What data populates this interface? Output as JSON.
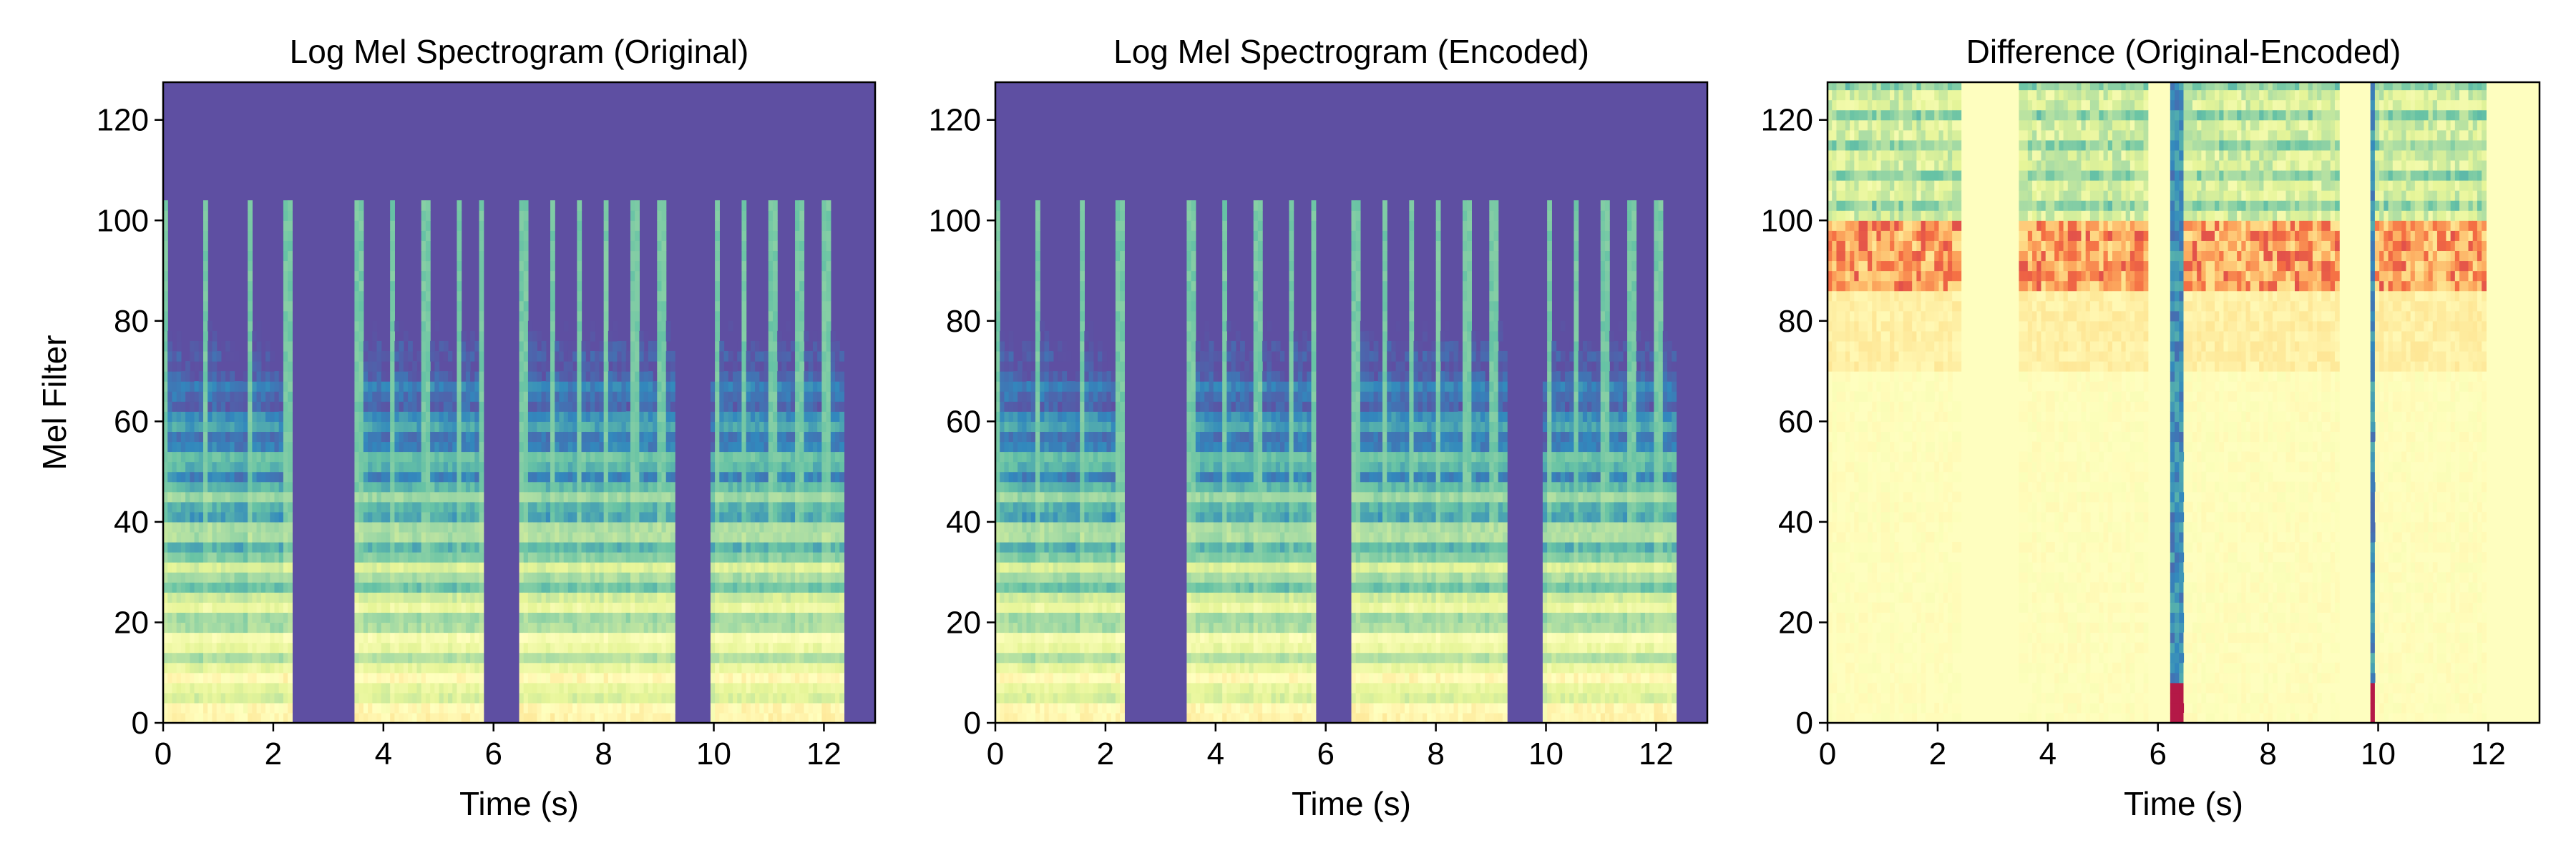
{
  "chart_data": [
    {
      "type": "heatmap",
      "title": "Log Mel Spectrogram (Original)",
      "xlabel": "Time (s)",
      "ylabel": "Mel Filter",
      "xlim": [
        0,
        12.93
      ],
      "ylim": [
        0,
        127.5
      ],
      "xticks": [
        "0",
        "2",
        "4",
        "6",
        "8",
        "10",
        "12"
      ],
      "yticks": [
        "0",
        "20",
        "40",
        "60",
        "80",
        "100",
        "120"
      ],
      "colormap": "Spectral_r",
      "background_color": "#5e4fa2",
      "grid": false,
      "legend": false,
      "kind": "spectrogram",
      "note_onsets_s": [
        0.0,
        0.7,
        1.5,
        2.2,
        3.5,
        4.1,
        4.7,
        5.3,
        5.7,
        6.5,
        7.0,
        7.5,
        8.0,
        8.5,
        9.0,
        10.0,
        10.5,
        11.0,
        11.5,
        12.0
      ],
      "silent_intervals_s": [
        [
          2.35,
          3.45
        ],
        [
          5.85,
          6.45
        ],
        [
          9.3,
          9.95
        ],
        [
          12.4,
          12.93
        ]
      ],
      "max_active_mel_bin": 100
    },
    {
      "type": "heatmap",
      "title": "Log Mel Spectrogram (Encoded)",
      "xlabel": "Time (s)",
      "ylabel": "",
      "xlim": [
        0,
        12.93
      ],
      "ylim": [
        0,
        127.5
      ],
      "xticks": [
        "0",
        "2",
        "4",
        "6",
        "8",
        "10",
        "12"
      ],
      "yticks": [
        "0",
        "20",
        "40",
        "60",
        "80",
        "100",
        "120"
      ],
      "colormap": "Spectral_r",
      "background_color": "#5e4fa2",
      "grid": false,
      "legend": false,
      "kind": "spectrogram",
      "note_onsets_s": [
        0.0,
        0.7,
        1.5,
        2.2,
        3.5,
        4.1,
        4.7,
        5.3,
        5.7,
        6.5,
        7.0,
        7.5,
        8.0,
        8.5,
        9.0,
        10.0,
        10.5,
        11.0,
        11.5,
        12.0
      ],
      "silent_intervals_s": [
        [
          2.35,
          3.45
        ],
        [
          5.85,
          6.45
        ],
        [
          9.3,
          9.95
        ],
        [
          12.4,
          12.93
        ]
      ],
      "max_active_mel_bin": 100
    },
    {
      "type": "heatmap",
      "title": "Difference (Original-Encoded)",
      "xlabel": "Time (s)",
      "ylabel": "",
      "xlim": [
        0,
        12.93
      ],
      "ylim": [
        0,
        127.5
      ],
      "xticks": [
        "0",
        "2",
        "4",
        "6",
        "8",
        "10",
        "12"
      ],
      "yticks": [
        "0",
        "20",
        "40",
        "60",
        "80",
        "100",
        "120"
      ],
      "colormap": "Spectral_r",
      "background_color": "#fefebf",
      "grid": false,
      "legend": false,
      "kind": "difference",
      "active_intervals_s": [
        [
          0.0,
          2.4
        ],
        [
          3.45,
          5.85
        ],
        [
          6.25,
          9.3
        ],
        [
          9.85,
          12.0
        ]
      ],
      "negative_spike_times_s": [
        6.3,
        9.8
      ],
      "high_band_mel_bins": [
        100,
        127
      ],
      "positive_band_mel_bins": [
        85,
        105
      ]
    }
  ]
}
